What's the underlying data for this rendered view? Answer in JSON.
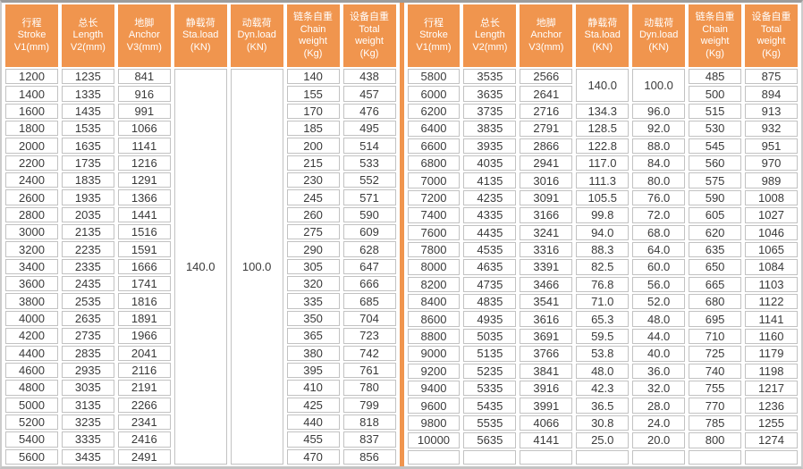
{
  "colors": {
    "accent": "#F0954E",
    "cell_border": "#c2c2c2",
    "frame_top": "#9c9c9c",
    "frame_other": "#c9c9c9",
    "text": "#3a3a3a",
    "header_text": "#ffffff"
  },
  "header_columns": [
    {
      "key": "stroke",
      "lines": [
        "行程",
        "Stroke",
        "V1(mm)"
      ]
    },
    {
      "key": "length",
      "lines": [
        "总长",
        "Length",
        "V2(mm)"
      ]
    },
    {
      "key": "anchor",
      "lines": [
        "地脚",
        "Anchor",
        "V3(mm)"
      ]
    },
    {
      "key": "sta-load",
      "lines": [
        "静载荷",
        "Sta.load",
        "(KN)"
      ]
    },
    {
      "key": "dyn-load",
      "lines": [
        "动载荷",
        "Dyn.load",
        "(KN)"
      ]
    },
    {
      "key": "chain-weight",
      "lines": [
        "链条自重",
        "Chain",
        "weight",
        "(Kg)"
      ]
    },
    {
      "key": "total-weight",
      "lines": [
        "设备自重",
        "Total",
        "weight",
        "(Kg)"
      ]
    }
  ],
  "left_table": {
    "rows": [
      [
        "1200",
        "1235",
        "841",
        {
          "v": "140.0",
          "rs": 23
        },
        {
          "v": "100.0",
          "rs": 23
        },
        "140",
        "438"
      ],
      [
        "1400",
        "1335",
        "916",
        "155",
        "457"
      ],
      [
        "1600",
        "1435",
        "991",
        "170",
        "476"
      ],
      [
        "1800",
        "1535",
        "1066",
        "185",
        "495"
      ],
      [
        "2000",
        "1635",
        "1141",
        "200",
        "514"
      ],
      [
        "2200",
        "1735",
        "1216",
        "215",
        "533"
      ],
      [
        "2400",
        "1835",
        "1291",
        "230",
        "552"
      ],
      [
        "2600",
        "1935",
        "1366",
        "245",
        "571"
      ],
      [
        "2800",
        "2035",
        "1441",
        "260",
        "590"
      ],
      [
        "3000",
        "2135",
        "1516",
        "275",
        "609"
      ],
      [
        "3200",
        "2235",
        "1591",
        "290",
        "628"
      ],
      [
        "3400",
        "2335",
        "1666",
        "305",
        "647"
      ],
      [
        "3600",
        "2435",
        "1741",
        "320",
        "666"
      ],
      [
        "3800",
        "2535",
        "1816",
        "335",
        "685"
      ],
      [
        "4000",
        "2635",
        "1891",
        "350",
        "704"
      ],
      [
        "4200",
        "2735",
        "1966",
        "365",
        "723"
      ],
      [
        "4400",
        "2835",
        "2041",
        "380",
        "742"
      ],
      [
        "4600",
        "2935",
        "2116",
        "395",
        "761"
      ],
      [
        "4800",
        "3035",
        "2191",
        "410",
        "780"
      ],
      [
        "5000",
        "3135",
        "2266",
        "425",
        "799"
      ],
      [
        "5200",
        "3235",
        "2341",
        "440",
        "818"
      ],
      [
        "5400",
        "3335",
        "2416",
        "455",
        "837"
      ],
      [
        "5600",
        "3435",
        "2491",
        "470",
        "856"
      ]
    ]
  },
  "right_table": {
    "rows": [
      [
        "5800",
        "3535",
        "2566",
        {
          "v": "140.0",
          "rs": 2
        },
        {
          "v": "100.0",
          "rs": 2
        },
        "485",
        "875"
      ],
      [
        "6000",
        "3635",
        "2641",
        "500",
        "894"
      ],
      [
        "6200",
        "3735",
        "2716",
        "134.3",
        "96.0",
        "515",
        "913"
      ],
      [
        "6400",
        "3835",
        "2791",
        "128.5",
        "92.0",
        "530",
        "932"
      ],
      [
        "6600",
        "3935",
        "2866",
        "122.8",
        "88.0",
        "545",
        "951"
      ],
      [
        "6800",
        "4035",
        "2941",
        "117.0",
        "84.0",
        "560",
        "970"
      ],
      [
        "7000",
        "4135",
        "3016",
        "111.3",
        "80.0",
        "575",
        "989"
      ],
      [
        "7200",
        "4235",
        "3091",
        "105.5",
        "76.0",
        "590",
        "1008"
      ],
      [
        "7400",
        "4335",
        "3166",
        "99.8",
        "72.0",
        "605",
        "1027"
      ],
      [
        "7600",
        "4435",
        "3241",
        "94.0",
        "68.0",
        "620",
        "1046"
      ],
      [
        "7800",
        "4535",
        "3316",
        "88.3",
        "64.0",
        "635",
        "1065"
      ],
      [
        "8000",
        "4635",
        "3391",
        "82.5",
        "60.0",
        "650",
        "1084"
      ],
      [
        "8200",
        "4735",
        "3466",
        "76.8",
        "56.0",
        "665",
        "1103"
      ],
      [
        "8400",
        "4835",
        "3541",
        "71.0",
        "52.0",
        "680",
        "1122"
      ],
      [
        "8600",
        "4935",
        "3616",
        "65.3",
        "48.0",
        "695",
        "1141"
      ],
      [
        "8800",
        "5035",
        "3691",
        "59.5",
        "44.0",
        "710",
        "1160"
      ],
      [
        "9000",
        "5135",
        "3766",
        "53.8",
        "40.0",
        "725",
        "1179"
      ],
      [
        "9200",
        "5235",
        "3841",
        "48.0",
        "36.0",
        "740",
        "1198"
      ],
      [
        "9400",
        "5335",
        "3916",
        "42.3",
        "32.0",
        "755",
        "1217"
      ],
      [
        "9600",
        "5435",
        "3991",
        "36.5",
        "28.0",
        "770",
        "1236"
      ],
      [
        "9800",
        "5535",
        "4066",
        "30.8",
        "24.0",
        "785",
        "1255"
      ],
      [
        "10000",
        "5635",
        "4141",
        "25.0",
        "20.0",
        "800",
        "1274"
      ],
      [
        "",
        "",
        "",
        "",
        "",
        "",
        ""
      ]
    ]
  }
}
